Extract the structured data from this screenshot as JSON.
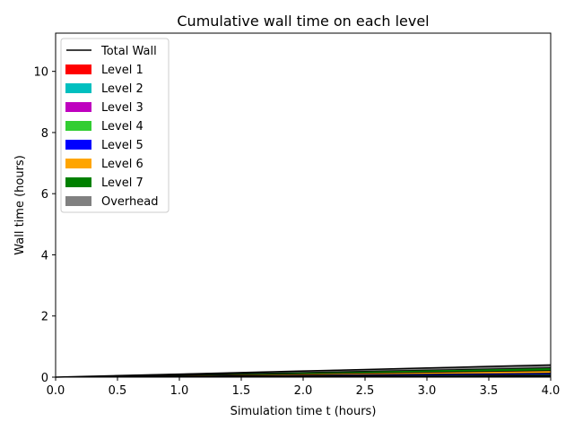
{
  "chart_data": {
    "type": "area",
    "title": "Cumulative wall time on each level",
    "xlabel": "Simulation time t (hours)",
    "ylabel": "Wall time (hours)",
    "xlim": [
      0,
      4
    ],
    "ylim": [
      0,
      11.25
    ],
    "xticks": [
      0,
      0.5,
      1,
      1.5,
      2,
      2.5,
      3,
      3.5,
      4
    ],
    "xtick_labels": [
      "0.0",
      "0.5",
      "1.0",
      "1.5",
      "2.0",
      "2.5",
      "3.0",
      "3.5",
      "4.0"
    ],
    "yticks": [
      0,
      2,
      4,
      6,
      8,
      10
    ],
    "ytick_labels": [
      "0",
      "2",
      "4",
      "6",
      "8",
      "10"
    ],
    "grid": false,
    "legend_position": "top-left",
    "x": [
      0,
      0.25,
      0.5,
      1,
      1.5,
      2,
      2.5,
      3,
      3.5,
      4
    ],
    "stacked": true,
    "series": [
      {
        "name": "Level 1",
        "color": "#ff0000",
        "values": [
          0,
          0.002,
          0.003,
          0.006,
          0.008,
          0.01,
          0.012,
          0.014,
          0.016,
          0.018
        ]
      },
      {
        "name": "Level 2",
        "color": "#00bfbf",
        "values": [
          0,
          0.001,
          0.002,
          0.004,
          0.006,
          0.008,
          0.01,
          0.012,
          0.014,
          0.016
        ]
      },
      {
        "name": "Level 3",
        "color": "#bf00bf",
        "values": [
          0,
          0.001,
          0.002,
          0.004,
          0.006,
          0.008,
          0.01,
          0.012,
          0.014,
          0.016
        ]
      },
      {
        "name": "Level 4",
        "color": "#32cd32",
        "values": [
          0,
          0.002,
          0.004,
          0.008,
          0.012,
          0.016,
          0.02,
          0.024,
          0.028,
          0.032
        ]
      },
      {
        "name": "Level 5",
        "color": "#0000ff",
        "values": [
          0,
          0.003,
          0.006,
          0.012,
          0.018,
          0.024,
          0.03,
          0.036,
          0.042,
          0.048
        ]
      },
      {
        "name": "Level 6",
        "color": "#ffa500",
        "values": [
          0,
          0.005,
          0.01,
          0.02,
          0.03,
          0.04,
          0.05,
          0.06,
          0.07,
          0.08
        ]
      },
      {
        "name": "Level 7",
        "color": "#008000",
        "values": [
          0,
          0.006,
          0.012,
          0.024,
          0.036,
          0.048,
          0.06,
          0.072,
          0.084,
          0.096
        ]
      },
      {
        "name": "Overhead",
        "color": "#808080",
        "values": [
          0,
          0.005,
          0.011,
          0.022,
          0.034,
          0.046,
          0.058,
          0.07,
          0.082,
          0.094
        ]
      }
    ],
    "total_line": {
      "name": "Total Wall",
      "color": "#000000",
      "values": [
        0,
        0.025,
        0.05,
        0.1,
        0.15,
        0.2,
        0.25,
        0.3,
        0.35,
        0.4
      ]
    },
    "legend": [
      "Total Wall",
      "Level 1",
      "Level 2",
      "Level 3",
      "Level 4",
      "Level 5",
      "Level 6",
      "Level 7",
      "Overhead"
    ]
  }
}
